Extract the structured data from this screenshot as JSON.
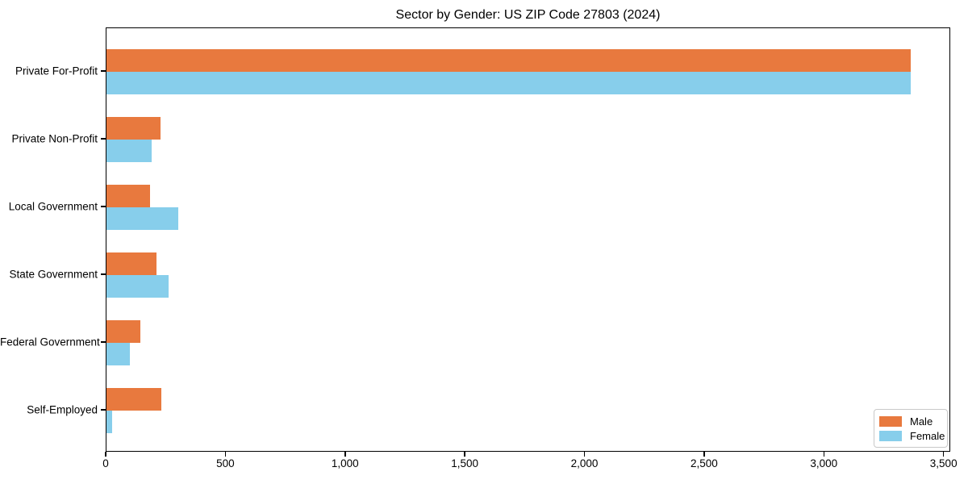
{
  "title": "Sector by Gender: US ZIP Code 27803 (2024)",
  "chart_data": {
    "type": "bar",
    "orientation": "horizontal",
    "title": "Sector by Gender: US ZIP Code 27803 (2024)",
    "xlabel": "",
    "ylabel": "",
    "categories": [
      "Private For-Profit",
      "Private Non-Profit",
      "Local Government",
      "State Government",
      "Federal Government",
      "Self-Employed"
    ],
    "series": [
      {
        "name": "Male",
        "color": "#e8793e",
        "values": [
          3360,
          225,
          183,
          208,
          142,
          229
        ]
      },
      {
        "name": "Female",
        "color": "#87ceeb",
        "values": [
          3360,
          188,
          300,
          260,
          98,
          25
        ]
      }
    ],
    "xlim": [
      0,
      3528
    ],
    "xticks": [
      0,
      500,
      1000,
      1500,
      2000,
      2500,
      3000,
      3500
    ],
    "xtick_labels": [
      "0",
      "500",
      "1,000",
      "1,500",
      "2,000",
      "2,500",
      "3,000",
      "3,500"
    ],
    "grid": false,
    "legend_position": "lower right"
  }
}
